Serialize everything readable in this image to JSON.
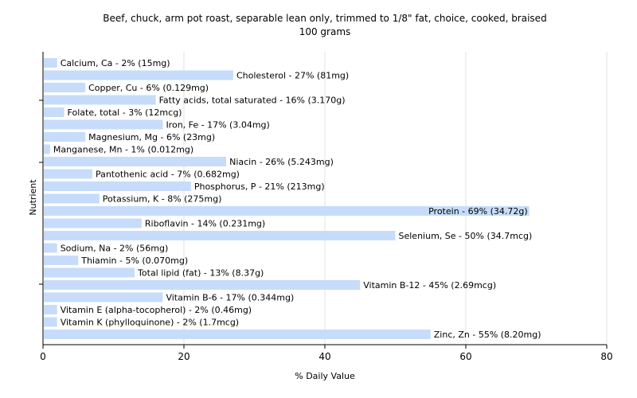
{
  "chart_data": {
    "type": "bar",
    "orientation": "horizontal",
    "title": "Beef, chuck, arm pot roast, separable lean only, trimmed to 1/8\" fat, choice, cooked, braised",
    "subtitle": "100 grams",
    "xlabel": "% Daily Value",
    "ylabel": "Nutrient",
    "xlim": [
      0,
      80
    ],
    "xticks": [
      "0",
      "20",
      "40",
      "60",
      "80"
    ],
    "grid": true,
    "legend": "none",
    "bar_color": "#c6dcfa",
    "categories": [
      "Calcium, Ca",
      "Cholesterol",
      "Copper, Cu",
      "Fatty acids, total saturated",
      "Folate, total",
      "Iron, Fe",
      "Magnesium, Mg",
      "Manganese, Mn",
      "Niacin",
      "Pantothenic acid",
      "Phosphorus, P",
      "Potassium, K",
      "Protein",
      "Riboflavin",
      "Selenium, Se",
      "Sodium, Na",
      "Thiamin",
      "Total lipid (fat)",
      "Vitamin B-12",
      "Vitamin B-6",
      "Vitamin E (alpha-tocopherol)",
      "Vitamin K (phylloquinone)",
      "Zinc, Zn"
    ],
    "values": [
      2,
      27,
      6,
      16,
      3,
      17,
      6,
      1,
      26,
      7,
      21,
      8,
      69,
      14,
      50,
      2,
      5,
      13,
      45,
      17,
      2,
      2,
      55
    ],
    "labels": [
      "Calcium, Ca - 2% (15mg)",
      "Cholesterol - 27% (81mg)",
      "Copper, Cu - 6% (0.129mg)",
      "Fatty acids, total saturated - 16% (3.170g)",
      "Folate, total - 3% (12mcg)",
      "Iron, Fe - 17% (3.04mg)",
      "Magnesium, Mg - 6% (23mg)",
      "Manganese, Mn - 1% (0.012mg)",
      "Niacin - 26% (5.243mg)",
      "Pantothenic acid - 7% (0.682mg)",
      "Phosphorus, P - 21% (213mg)",
      "Potassium, K - 8% (275mg)",
      "Protein - 69% (34.72g)",
      "Riboflavin - 14% (0.231mg)",
      "Selenium, Se - 50% (34.7mcg)",
      "Sodium, Na - 2% (56mg)",
      "Thiamin - 5% (0.070mg)",
      "Total lipid (fat) - 13% (8.37g)",
      "Vitamin B-12 - 45% (2.69mcg)",
      "Vitamin B-6 - 17% (0.344mg)",
      "Vitamin E (alpha-tocopherol) - 2% (0.46mg)",
      "Vitamin K (phylloquinone) - 2% (1.7mcg)",
      "Zinc, Zn - 55% (8.20mg)"
    ]
  }
}
